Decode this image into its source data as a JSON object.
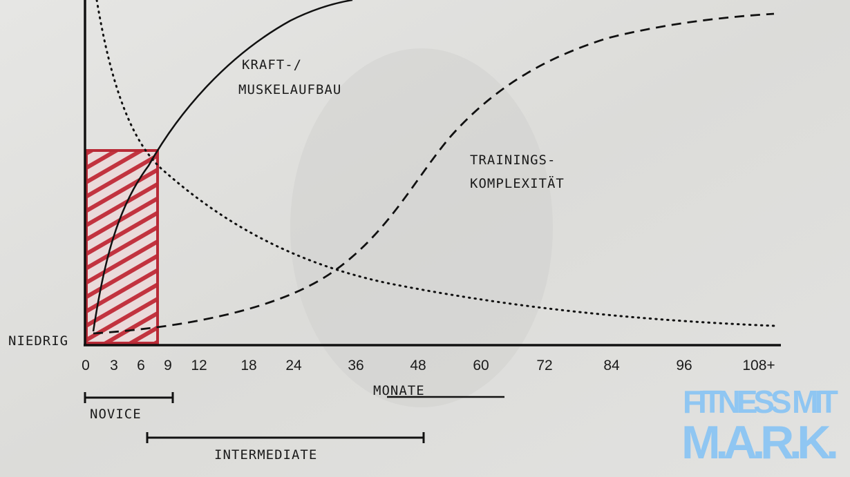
{
  "y_axis_label": "NIEDRIG",
  "x_axis": {
    "ticks": [
      "0",
      "3",
      "6",
      "9",
      "12",
      "18",
      "24",
      "36",
      "48",
      "60",
      "72",
      "84",
      "96",
      "108+"
    ],
    "title": "MONATE"
  },
  "curve_labels": {
    "strength": [
      "KRAFT-/",
      "MUSKELAUFBAU"
    ],
    "complexity": [
      "TRAININGS-",
      "KOMPLEXITÄT"
    ]
  },
  "ranges": [
    {
      "label": "NOVICE"
    },
    {
      "label": "INTERMEDIATE"
    }
  ],
  "watermark": [
    "FITNESS MIT",
    "M.A.R.K."
  ]
}
